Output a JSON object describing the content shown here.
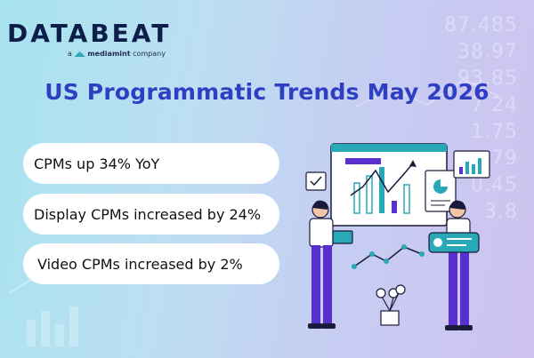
{
  "logo": {
    "wordmark": "DATABEAT",
    "tagline_prefix": "a",
    "tagline_brand": "mediamint",
    "tagline_suffix": "company"
  },
  "title": "US Programmatic Trends May 2026",
  "stats": [
    {
      "text": "CPMs up 34% YoY"
    },
    {
      "text": "Display CPMs increased by 24%"
    },
    {
      "text": "Video CPMs increased by 2%"
    }
  ],
  "background_numbers": [
    "87.485",
    "38.97",
    "93.85",
    "7 24",
    "1.75",
    "79",
    "0.45",
    "3.8"
  ],
  "colors": {
    "title": "#2f3fc4",
    "logo": "#0e1e4a",
    "accent_teal": "#29a8b8",
    "accent_purple": "#5a2fd0",
    "pill_bg": "#ffffff"
  },
  "illustration": {
    "icons": [
      "bar-chart-board-icon",
      "pie-chart-icon",
      "checkmark-note-icon",
      "line-graph-icon",
      "plant-pot-icon",
      "laptop-icon",
      "tablet-icon"
    ]
  }
}
